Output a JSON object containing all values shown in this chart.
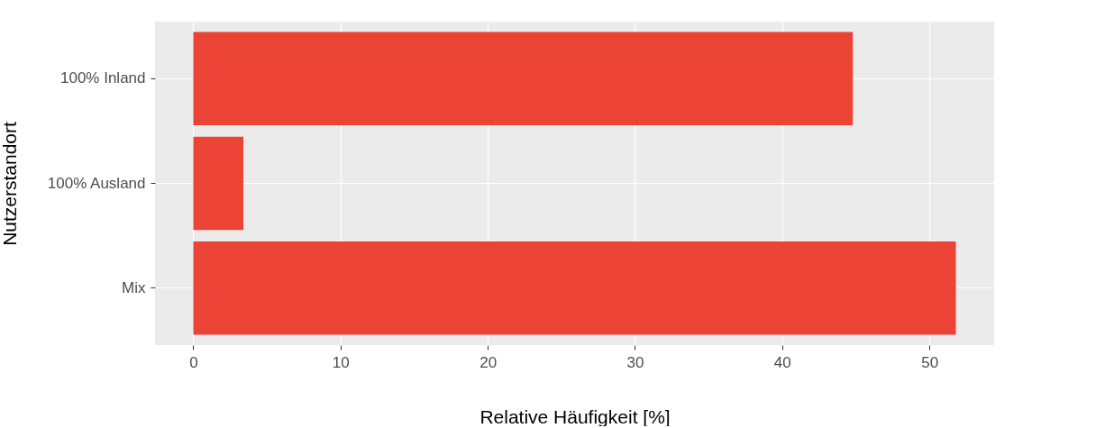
{
  "chart_data": {
    "type": "bar",
    "orientation": "horizontal",
    "xlabel": "Relative Häufigkeit [%]",
    "ylabel": "Nutzerstandort",
    "categories": [
      "100% Inland",
      "100% Ausland",
      "Mix"
    ],
    "values": [
      44.8,
      3.4,
      51.8
    ],
    "color": "#eb4335",
    "xlim": [
      -2.6,
      54.4
    ],
    "xticks": [
      0,
      10,
      20,
      30,
      40,
      50
    ],
    "grid": true
  }
}
